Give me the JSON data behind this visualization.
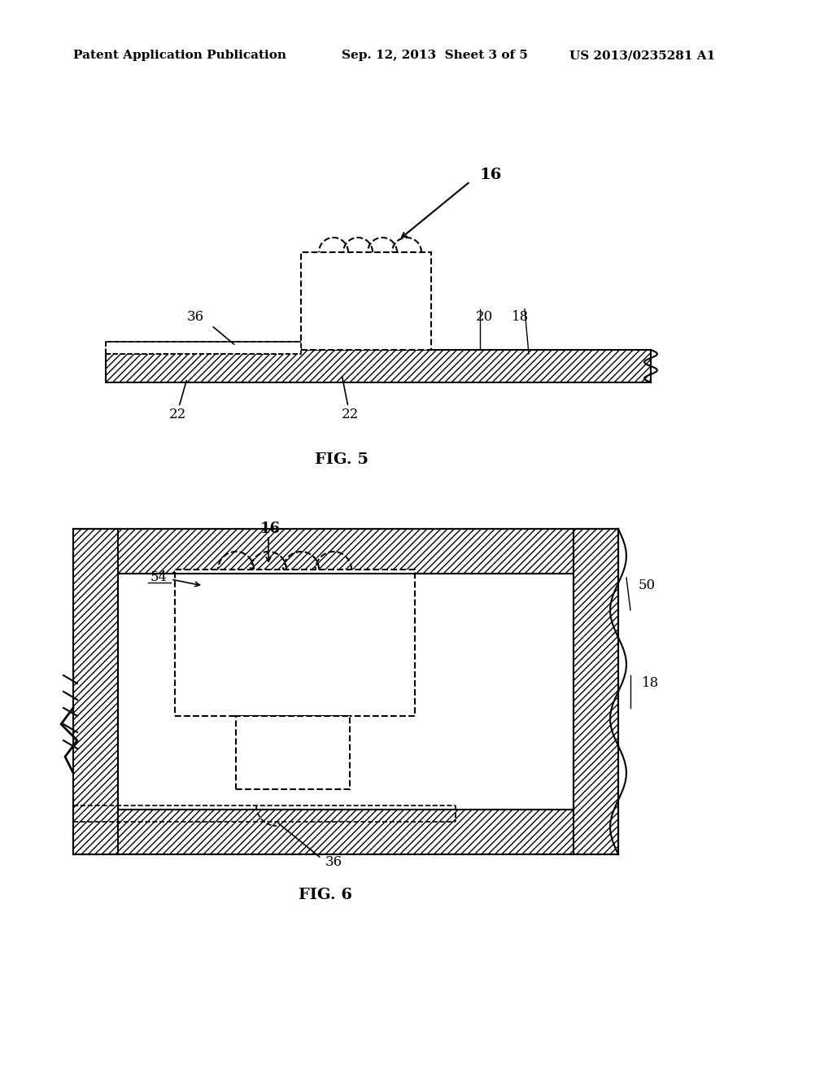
{
  "bg_color": "#ffffff",
  "header_left": "Patent Application Publication",
  "header_center": "Sep. 12, 2013  Sheet 3 of 5",
  "header_right": "US 2013/0235281 A1",
  "fig5_label": "FIG. 5",
  "fig6_label": "FIG. 6",
  "label_16_fig5": "16",
  "label_36_fig5": "36",
  "label_20_fig5": "20",
  "label_18_fig5": "18",
  "label_22a_fig5": "22",
  "label_22b_fig5": "22",
  "label_16_fig6": "16",
  "label_54_fig6": "54",
  "label_50_fig6": "50",
  "label_18_fig6": "18",
  "label_36_fig6": "36"
}
